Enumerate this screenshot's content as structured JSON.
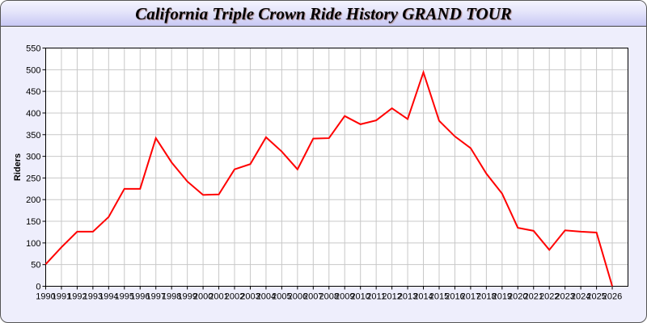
{
  "chart_data": {
    "type": "line",
    "title": "California Triple Crown Ride History GRAND TOUR",
    "xlabel": "",
    "ylabel": "Riders",
    "xlim": [
      1990,
      2027
    ],
    "ylim": [
      0,
      550
    ],
    "yticks": [
      0,
      50,
      100,
      150,
      200,
      250,
      300,
      350,
      400,
      450,
      500,
      550
    ],
    "grid": true,
    "line_color": "#ff0000",
    "x": [
      1990,
      1991,
      1992,
      1993,
      1994,
      1995,
      1996,
      1997,
      1998,
      1999,
      2000,
      2001,
      2002,
      2003,
      2004,
      2005,
      2006,
      2007,
      2008,
      2009,
      2010,
      2011,
      2012,
      2013,
      2014,
      2015,
      2016,
      2017,
      2018,
      2019,
      2020,
      2021,
      2022,
      2023,
      2024,
      2025,
      2026
    ],
    "series": [
      {
        "values": [
          51,
          90,
          126,
          126,
          160,
          225,
          225,
          342,
          286,
          242,
          211,
          212,
          270,
          282,
          344,
          311,
          270,
          341,
          342,
          393,
          374,
          383,
          411,
          386,
          494,
          382,
          346,
          319,
          260,
          214,
          135,
          128,
          84,
          129,
          126,
          124,
          0
        ]
      }
    ]
  }
}
